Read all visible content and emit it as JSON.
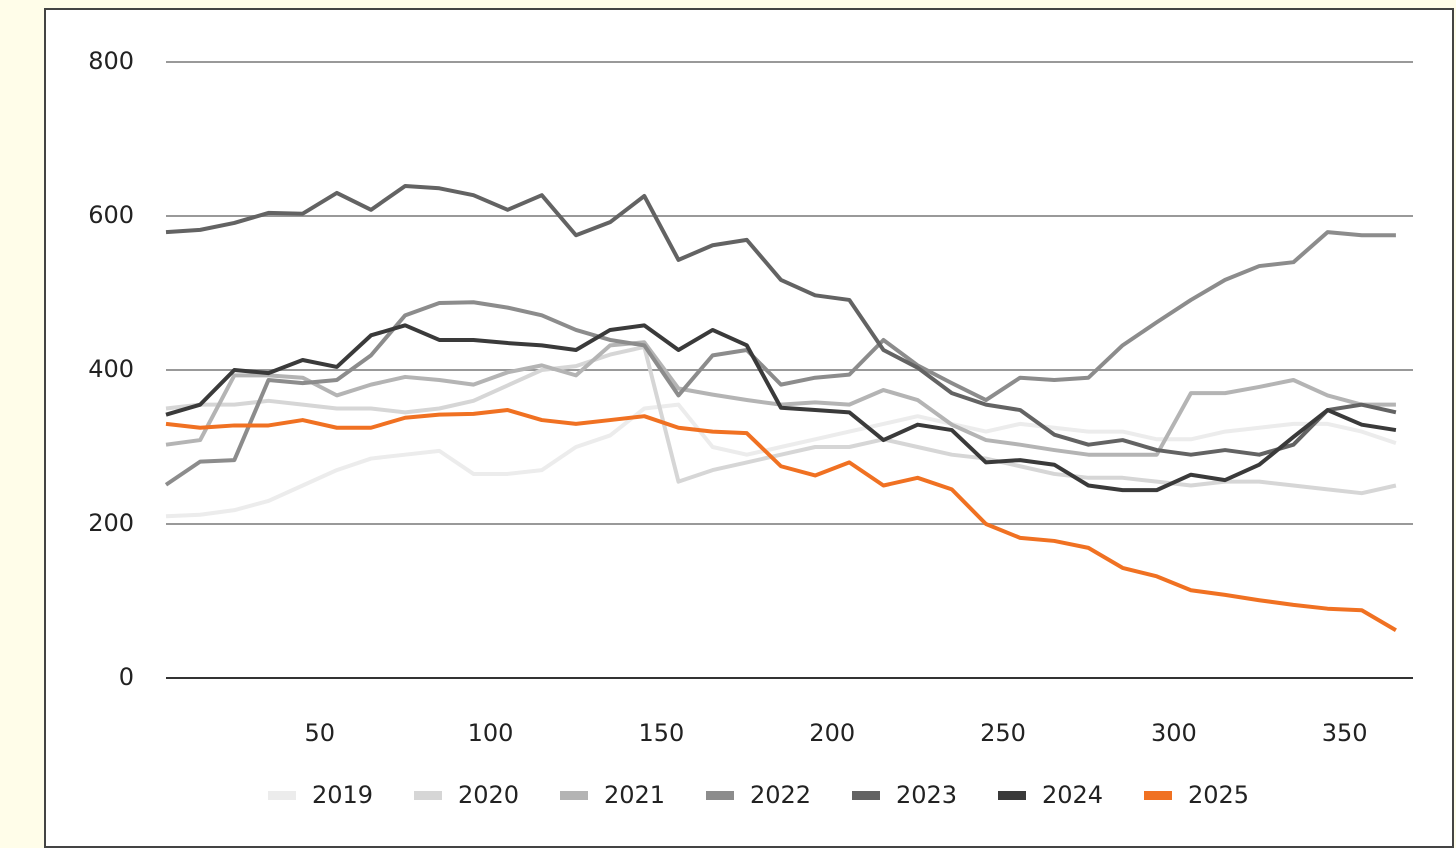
{
  "chart_data": {
    "type": "line",
    "x": [
      5,
      15,
      25,
      35,
      45,
      55,
      65,
      75,
      85,
      95,
      105,
      115,
      125,
      135,
      145,
      155,
      165,
      175,
      185,
      195,
      205,
      215,
      225,
      235,
      245,
      255,
      265,
      275,
      285,
      295,
      305,
      315,
      325,
      335,
      345,
      355,
      365
    ],
    "xlim": [
      5,
      370
    ],
    "xticks": [
      50,
      100,
      150,
      200,
      250,
      300,
      350
    ],
    "ylim": [
      0,
      800
    ],
    "yticks": [
      0,
      200,
      400,
      600,
      800
    ],
    "grid": true,
    "legend": "bottom",
    "series": [
      {
        "name": "2019",
        "color": "#ececec",
        "values": [
          210,
          212,
          218,
          230,
          250,
          270,
          285,
          290,
          295,
          265,
          265,
          270,
          300,
          315,
          350,
          355,
          300,
          290,
          300,
          310,
          320,
          330,
          340,
          330,
          320,
          330,
          325,
          320,
          320,
          310,
          310,
          320,
          325,
          330,
          330,
          320,
          305
        ]
      },
      {
        "name": "2020",
        "color": "#d6d6d6",
        "values": [
          350,
          355,
          355,
          360,
          355,
          350,
          350,
          345,
          350,
          360,
          380,
          400,
          405,
          420,
          430,
          255,
          270,
          280,
          290,
          300,
          300,
          310,
          300,
          290,
          285,
          275,
          265,
          260,
          260,
          255,
          250,
          255,
          255,
          250,
          245,
          240,
          250
        ]
      },
      {
        "name": "2021",
        "color": "#b4b4b4",
        "values": [
          303,
          309,
          393,
          393,
          390,
          367,
          381,
          391,
          387,
          381,
          397,
          406,
          393,
          432,
          436,
          376,
          368,
          361,
          355,
          358,
          355,
          374,
          361,
          329,
          309,
          303,
          296,
          290,
          290,
          290,
          370,
          370,
          378,
          387,
          367,
          355,
          355
        ]
      },
      {
        "name": "2022",
        "color": "#8c8c8c",
        "values": [
          251,
          281,
          283,
          387,
          383,
          387,
          419,
          471,
          487,
          488,
          481,
          471,
          452,
          439,
          432,
          367,
          419,
          426,
          381,
          390,
          394,
          439,
          406,
          383,
          361,
          390,
          387,
          390,
          432,
          462,
          491,
          517,
          535,
          540,
          579,
          575,
          575
        ]
      },
      {
        "name": "2023",
        "color": "#636363",
        "values": [
          579,
          582,
          591,
          604,
          603,
          630,
          608,
          639,
          636,
          627,
          608,
          627,
          575,
          592,
          626,
          543,
          562,
          569,
          517,
          497,
          491,
          426,
          403,
          370,
          355,
          348,
          316,
          303,
          309,
          296,
          290,
          296,
          290,
          303,
          348,
          355,
          345
        ]
      },
      {
        "name": "2024",
        "color": "#3a3a3a",
        "values": [
          342,
          355,
          400,
          396,
          413,
          404,
          445,
          458,
          439,
          439,
          435,
          432,
          426,
          452,
          458,
          426,
          452,
          432,
          351,
          348,
          345,
          309,
          329,
          322,
          280,
          283,
          277,
          250,
          244,
          244,
          264,
          257,
          277,
          313,
          348,
          329,
          322
        ]
      },
      {
        "name": "2025",
        "color": "#f07122",
        "values": [
          330,
          325,
          328,
          328,
          335,
          325,
          325,
          338,
          342,
          343,
          348,
          335,
          330,
          335,
          340,
          325,
          320,
          318,
          275,
          263,
          280,
          250,
          260,
          245,
          200,
          182,
          178,
          169,
          143,
          132,
          114,
          108,
          101,
          95,
          90,
          88,
          62
        ]
      }
    ]
  }
}
